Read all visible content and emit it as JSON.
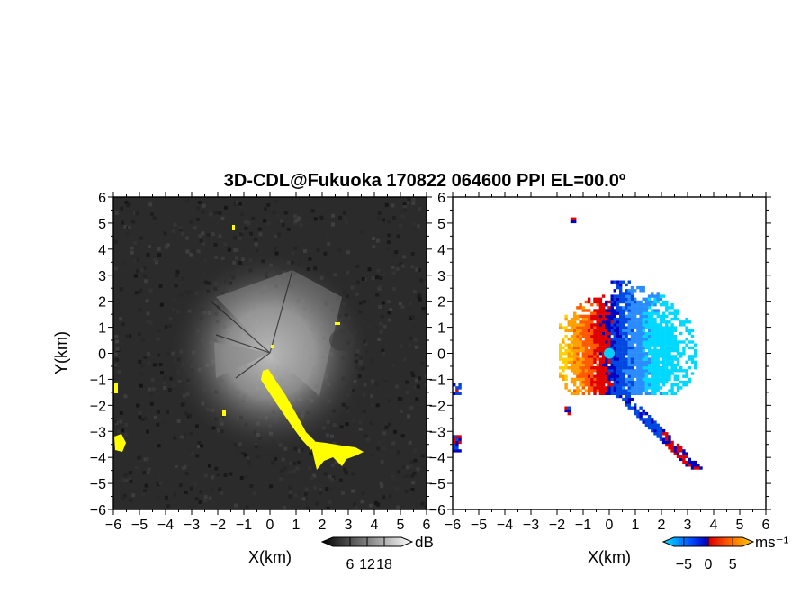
{
  "chart_data": [
    {
      "type": "heatmap",
      "title": "3D-CDL@Fukuoka 170822 064600 PPI EL=00.0º",
      "xlabel": "X(km)",
      "ylabel": "Y(km)",
      "xlim": [
        -6,
        6
      ],
      "ylim": [
        -6,
        6
      ],
      "x_ticks": [
        "-6",
        "-5",
        "-4",
        "-3",
        "-2",
        "-1",
        "0",
        "1",
        "2",
        "3",
        "4",
        "5",
        "6"
      ],
      "y_ticks": [
        "-6",
        "-5",
        "-4",
        "-3",
        "-2",
        "-1",
        "0",
        "1",
        "2",
        "3",
        "4",
        "5",
        "6"
      ],
      "colorbar": {
        "unit": "dB",
        "ticks": [
          "6",
          "12",
          "18"
        ],
        "range": [
          0,
          24
        ],
        "colors": [
          "#000000",
          "#ffffff"
        ]
      },
      "highlight_color": "#ffff00",
      "background_color": "#2b2b2b"
    },
    {
      "type": "heatmap",
      "xlabel": "X(km)",
      "xlim": [
        -6,
        6
      ],
      "ylim": [
        -6,
        6
      ],
      "x_ticks": [
        "-6",
        "-5",
        "-4",
        "-3",
        "-2",
        "-1",
        "0",
        "1",
        "2",
        "3",
        "4",
        "5",
        "6"
      ],
      "y_ticks": [
        "-6",
        "-5",
        "-4",
        "-3",
        "-2",
        "-1",
        "0",
        "1",
        "2",
        "3",
        "4",
        "5",
        "6"
      ],
      "colorbar": {
        "unit": "ms⁻¹",
        "ticks": [
          "−5",
          "0",
          "5"
        ],
        "range": [
          -7,
          7
        ],
        "colors": [
          "#00e5ff",
          "#0050ff",
          "#0000c8",
          "#e00000",
          "#ff6a00",
          "#ffd000"
        ]
      }
    }
  ]
}
